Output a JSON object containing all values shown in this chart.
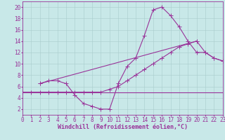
{
  "background_color": "#c8e8e8",
  "grid_color": "#a8cccc",
  "line_color": "#993399",
  "xlabel": "Windchill (Refroidissement éolien,°C)",
  "xlim": [
    0,
    23
  ],
  "ylim": [
    1,
    21
  ],
  "xticks": [
    0,
    1,
    2,
    3,
    4,
    5,
    6,
    7,
    8,
    9,
    10,
    11,
    12,
    13,
    14,
    15,
    16,
    17,
    18,
    19,
    20,
    21,
    22,
    23
  ],
  "yticks": [
    2,
    4,
    6,
    8,
    10,
    12,
    14,
    16,
    18,
    20
  ],
  "series": [
    {
      "x": [
        0,
        1,
        2,
        3,
        4,
        5,
        6,
        7,
        8,
        9,
        10,
        11,
        12,
        13,
        14,
        15,
        16,
        17,
        18,
        19,
        20,
        21,
        22,
        23
      ],
      "y": [
        5,
        5,
        5,
        5,
        5,
        5,
        5,
        5,
        5,
        5,
        5,
        5,
        5,
        5,
        5,
        5,
        5,
        5,
        5,
        5,
        5,
        5,
        5,
        5
      ],
      "marker": false
    },
    {
      "x": [
        0,
        1,
        2,
        3,
        4,
        5,
        6,
        7,
        8,
        9,
        10,
        11,
        12,
        13,
        14,
        15,
        16,
        17,
        18,
        19,
        20,
        21,
        22,
        23
      ],
      "y": [
        5,
        5,
        5,
        5,
        5,
        5,
        5,
        5,
        5,
        5,
        5.5,
        6,
        7,
        8,
        9,
        10,
        11,
        12,
        13,
        13.5,
        14,
        12,
        11,
        10.5
      ],
      "marker": true
    },
    {
      "x": [
        2,
        3,
        4,
        5,
        6,
        7,
        8,
        9,
        10,
        11,
        12,
        13,
        14,
        15,
        16,
        17,
        18,
        19,
        20,
        21,
        22,
        23
      ],
      "y": [
        6.5,
        7,
        7,
        6.5,
        4.5,
        3,
        2.5,
        2,
        2,
        6.5,
        9.5,
        11,
        15,
        19.5,
        20,
        18.5,
        16.5,
        14,
        12,
        12,
        11,
        10.5
      ],
      "marker": true
    },
    {
      "x": [
        2,
        20
      ],
      "y": [
        6.5,
        14
      ],
      "marker": true
    }
  ],
  "marker_size": 2.0,
  "linewidth": 0.8,
  "font_size_label": 6,
  "font_size_tick": 5.5
}
